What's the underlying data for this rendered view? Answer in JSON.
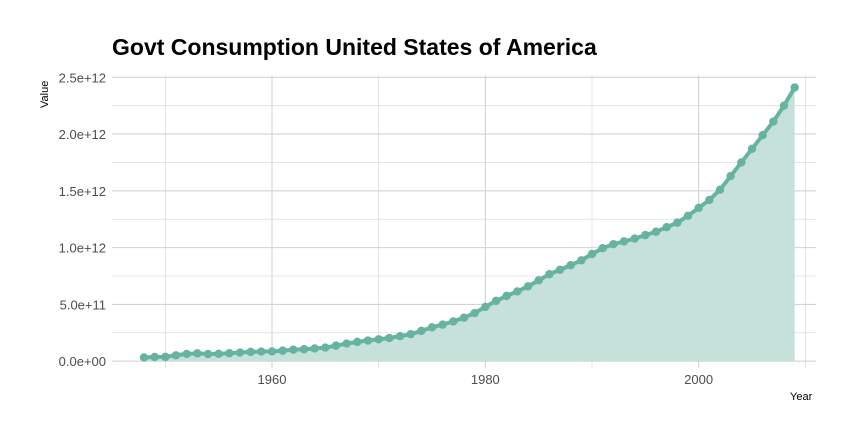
{
  "chart_data": {
    "type": "area",
    "title": "Govt Consumption United States of America",
    "xlabel": "Year",
    "ylabel": "Value",
    "xlim": [
      1945,
      2011
    ],
    "ylim": [
      -60000000000,
      2520000000000
    ],
    "x_ticks": [
      1960,
      1980,
      2000
    ],
    "x_tick_labels": [
      "1960",
      "1980",
      "2000"
    ],
    "y_ticks": [
      0,
      500000000000,
      1000000000000,
      1500000000000,
      2000000000000,
      2500000000000
    ],
    "y_tick_labels": [
      "0.0e+00",
      "5.0e+11",
      "1.0e+12",
      "1.5e+12",
      "2.0e+12",
      "2.5e+12"
    ],
    "grid": true,
    "legend": "none",
    "colors": {
      "line": "#66b3a0",
      "area": "#c5e1da",
      "grid": "#d3d3d3"
    },
    "series": [
      {
        "x": [
          1948,
          1949,
          1950,
          1951,
          1952,
          1953,
          1954,
          1955,
          1956,
          1957,
          1958,
          1959,
          1960,
          1961,
          1962,
          1963,
          1964,
          1965,
          1966,
          1967,
          1968,
          1969,
          1970,
          1971,
          1972,
          1973,
          1974,
          1975,
          1976,
          1977,
          1978,
          1979,
          1980,
          1981,
          1982,
          1983,
          1984,
          1985,
          1986,
          1987,
          1988,
          1989,
          1990,
          1991,
          1992,
          1993,
          1994,
          1995,
          1996,
          1997,
          1998,
          1999,
          2000,
          2001,
          2002,
          2003,
          2004,
          2005,
          2006,
          2007,
          2008,
          2009
        ],
        "values": [
          33000000000,
          37000000000,
          38000000000,
          52000000000,
          64000000000,
          69000000000,
          63000000000,
          65000000000,
          70000000000,
          76000000000,
          82000000000,
          85000000000,
          86000000000,
          93000000000,
          101000000000,
          105000000000,
          112000000000,
          120000000000,
          137000000000,
          155000000000,
          170000000000,
          182000000000,
          193000000000,
          204000000000,
          220000000000,
          238000000000,
          267000000000,
          298000000000,
          322000000000,
          350000000000,
          383000000000,
          424000000000,
          478000000000,
          531000000000,
          575000000000,
          614000000000,
          659000000000,
          712000000000,
          766000000000,
          805000000000,
          845000000000,
          888000000000,
          944000000000,
          995000000000,
          1030000000000,
          1055000000000,
          1080000000000,
          1110000000000,
          1140000000000,
          1180000000000,
          1220000000000,
          1280000000000,
          1350000000000,
          1420000000000,
          1510000000000,
          1630000000000,
          1750000000000,
          1870000000000,
          1990000000000,
          2110000000000,
          2250000000000,
          2410000000000
        ]
      }
    ]
  }
}
